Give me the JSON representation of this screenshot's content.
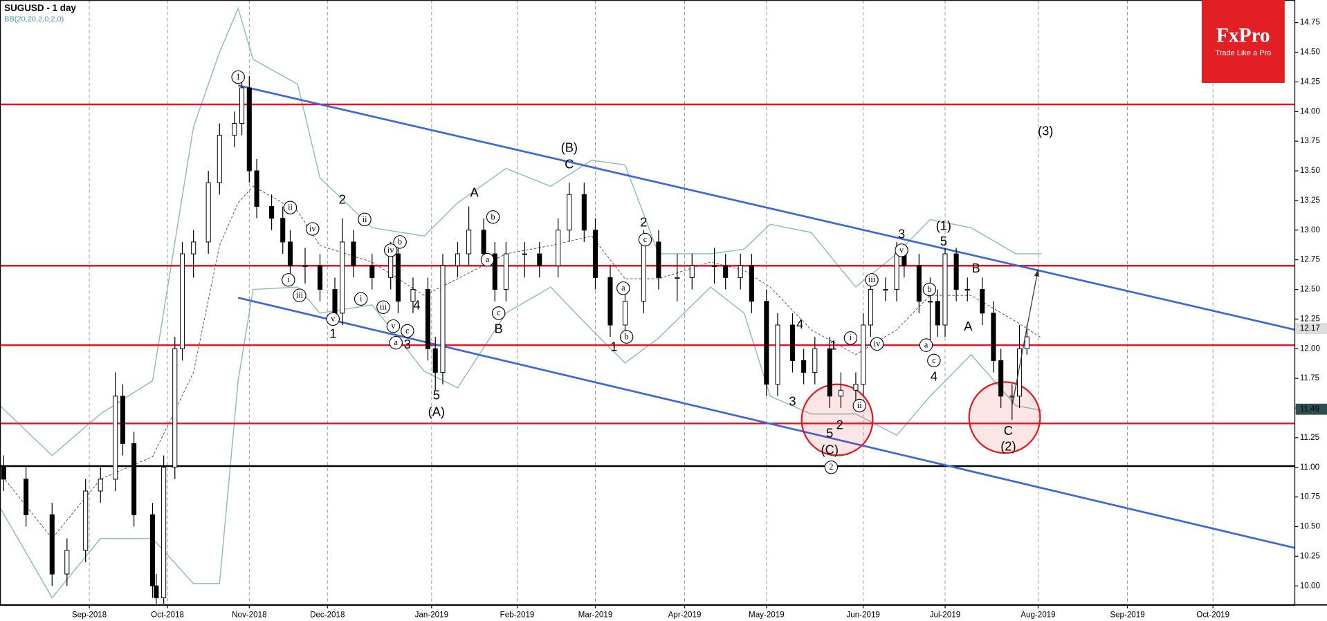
{
  "chart_data": {
    "type": "candlestick",
    "title": "SUGUSD - 1 day",
    "subtitle": "BB(20,20,2,0,2,0)",
    "logo": {
      "title": "FxPro",
      "tagline": "Trade Like a Pro"
    },
    "up_color": "#ffffff",
    "down_color": "#000000",
    "x": [
      1,
      7,
      14,
      18,
      23,
      27,
      31,
      33,
      36,
      41,
      42,
      44,
      47,
      49,
      52,
      56,
      59,
      63,
      65,
      67,
      69,
      73,
      76,
      78,
      82,
      86,
      90,
      92,
      95,
      100,
      105,
      107,
      111,
      115,
      117,
      119,
      123,
      126,
      130,
      133,
      136,
      141,
      145,
      150,
      153,
      157,
      160,
      164,
      168,
      173,
      177,
      182,
      186,
      192,
      195,
      199,
      202,
      206,
      209,
      213,
      216,
      219,
      223,
      226,
      230,
      232,
      234,
      238,
      241,
      243,
      247,
      250,
      252,
      254,
      257,
      260,
      264,
      267,
      269,
      272,
      274,
      276
    ],
    "open": [
      11.0,
      10.9,
      10.6,
      10.1,
      10.3,
      10.8,
      10.9,
      11.6,
      11.2,
      10.6,
      10.0,
      9.9,
      11.0,
      12.0,
      12.8,
      12.9,
      13.4,
      13.8,
      13.9,
      14.2,
      13.5,
      13.2,
      13.1,
      12.9,
      12.7,
      12.7,
      12.5,
      12.3,
      12.9,
      12.7,
      12.6,
      12.8,
      12.4,
      12.5,
      12.0,
      11.8,
      12.7,
      12.8,
      13.0,
      12.8,
      12.5,
      12.8,
      12.8,
      12.7,
      13.0,
      13.3,
      13.0,
      12.6,
      12.2,
      12.4,
      12.9,
      12.6,
      12.6,
      12.7,
      12.7,
      12.6,
      12.7,
      12.4,
      11.7,
      12.2,
      11.9,
      11.8,
      12.0,
      11.6,
      11.65,
      11.7,
      12.2,
      12.5,
      12.5,
      12.8,
      12.7,
      12.4,
      12.4,
      12.2,
      12.8,
      12.5,
      12.5,
      12.3,
      11.9,
      11.6,
      11.6,
      12.0
    ],
    "high": [
      11.1,
      11.0,
      10.7,
      10.4,
      10.9,
      11.0,
      11.8,
      11.7,
      11.3,
      10.7,
      10.1,
      11.1,
      12.1,
      12.9,
      13.0,
      13.5,
      13.9,
      14.0,
      14.3,
      14.3,
      13.6,
      13.3,
      13.2,
      13.0,
      12.85,
      12.8,
      12.6,
      13.1,
      13.0,
      12.8,
      12.9,
      12.9,
      12.6,
      12.6,
      12.1,
      12.8,
      12.9,
      13.2,
      13.1,
      12.9,
      12.9,
      12.9,
      12.9,
      13.1,
      13.4,
      13.4,
      13.1,
      12.7,
      12.5,
      13.0,
      13.0,
      12.8,
      12.8,
      12.85,
      12.8,
      12.8,
      12.8,
      12.5,
      12.3,
      12.3,
      12.0,
      12.1,
      12.1,
      11.8,
      11.8,
      12.3,
      12.6,
      12.6,
      12.9,
      12.85,
      12.8,
      12.6,
      12.5,
      12.85,
      12.85,
      12.6,
      12.6,
      12.4,
      12.0,
      11.7,
      12.2,
      12.2
    ],
    "low": [
      10.8,
      10.5,
      10.0,
      10.0,
      10.2,
      10.7,
      10.8,
      11.1,
      10.5,
      9.9,
      9.85,
      9.85,
      10.9,
      11.9,
      12.6,
      12.8,
      13.3,
      13.7,
      13.8,
      13.4,
      13.1,
      13.0,
      12.8,
      12.6,
      12.55,
      12.4,
      12.2,
      12.2,
      12.6,
      12.5,
      12.5,
      12.3,
      12.3,
      11.9,
      11.65,
      11.7,
      12.6,
      12.7,
      12.7,
      12.4,
      12.4,
      12.6,
      12.6,
      12.6,
      12.9,
      12.9,
      12.5,
      12.1,
      12.1,
      12.3,
      12.5,
      12.4,
      12.5,
      12.55,
      12.5,
      12.5,
      12.3,
      11.6,
      11.6,
      11.8,
      11.7,
      11.7,
      11.5,
      11.5,
      11.55,
      11.6,
      12.1,
      12.4,
      12.4,
      12.6,
      12.3,
      12.0,
      12.1,
      12.1,
      12.4,
      12.4,
      12.2,
      11.8,
      11.5,
      11.4,
      11.5,
      11.95
    ],
    "close": [
      10.9,
      10.6,
      10.1,
      10.3,
      10.8,
      10.9,
      11.6,
      11.2,
      10.6,
      10.0,
      9.9,
      11.0,
      12.0,
      12.8,
      12.9,
      13.4,
      13.8,
      13.9,
      14.2,
      13.5,
      13.2,
      13.1,
      12.9,
      12.7,
      12.7,
      12.5,
      12.3,
      12.9,
      12.7,
      12.6,
      12.8,
      12.4,
      12.5,
      12.0,
      11.8,
      12.7,
      12.8,
      13.0,
      12.8,
      12.5,
      12.8,
      12.8,
      12.7,
      13.0,
      13.3,
      13.0,
      12.6,
      12.2,
      12.4,
      12.9,
      12.6,
      12.6,
      12.7,
      12.7,
      12.6,
      12.7,
      12.4,
      11.7,
      12.2,
      11.9,
      11.8,
      12.0,
      11.6,
      11.65,
      11.7,
      12.2,
      12.5,
      12.5,
      12.8,
      12.7,
      12.4,
      12.4,
      12.2,
      12.8,
      12.5,
      12.5,
      12.3,
      11.9,
      11.6,
      11.6,
      12.0,
      12.1
    ],
    "bollinger": {
      "color": "#8fbcbc",
      "mid_color": "#555555",
      "x": [
        0,
        14,
        27,
        41,
        52,
        59,
        64,
        68,
        80,
        86,
        100,
        114,
        123,
        136,
        148,
        159,
        168,
        177,
        191,
        200,
        207,
        218,
        230,
        241,
        250,
        261,
        273,
        280
      ],
      "upper": [
        11.52,
        11.1,
        11.45,
        11.73,
        13.87,
        14.5,
        14.87,
        14.44,
        14.23,
        13.44,
        13.02,
        12.95,
        13.23,
        13.52,
        13.37,
        13.59,
        13.55,
        12.8,
        12.8,
        12.84,
        13.05,
        12.98,
        12.52,
        12.8,
        13.09,
        13.02,
        12.8,
        12.8
      ],
      "middle": [
        10.95,
        10.4,
        10.9,
        11.09,
        11.8,
        12.87,
        13.23,
        13.37,
        13.16,
        12.87,
        12.73,
        12.45,
        12.59,
        12.8,
        12.87,
        12.95,
        12.59,
        12.59,
        12.73,
        12.66,
        12.52,
        12.16,
        11.95,
        12.16,
        12.45,
        12.45,
        12.23,
        12.09
      ],
      "lower": [
        10.66,
        9.9,
        10.4,
        10.4,
        10.02,
        10.02,
        11.73,
        12.5,
        12.52,
        12.3,
        12.37,
        11.81,
        11.67,
        12.3,
        12.52,
        12.16,
        11.88,
        12.09,
        12.52,
        12.3,
        11.6,
        11.45,
        11.45,
        11.27,
        11.6,
        11.95,
        11.52,
        11.48
      ]
    },
    "hlines": [
      {
        "value": 14.06,
        "color": "#e8141b"
      },
      {
        "value": 12.7,
        "color": "#e8141b"
      },
      {
        "value": 12.03,
        "color": "#e8141b"
      },
      {
        "value": 11.37,
        "color": "#e8141b"
      },
      {
        "value": 11.01,
        "color": "#000000"
      }
    ],
    "trendlines": [
      {
        "color": "#3a64e0",
        "x": [
          64,
          348
        ],
        "y": [
          14.22,
          12.16
        ]
      },
      {
        "color": "#3a64e0",
        "x": [
          64,
          348
        ],
        "y": [
          12.43,
          10.32
        ]
      }
    ],
    "arrow": {
      "color": "#333333",
      "x": [
        272,
        279
      ],
      "y": [
        11.52,
        12.67
      ]
    },
    "highlight_circles": [
      {
        "x": 225,
        "y": 11.4
      },
      {
        "x": 270,
        "y": 11.42
      }
    ],
    "price_tags": [
      {
        "value": 12.17,
        "color": "#dddddd"
      },
      {
        "value": 11.49,
        "color": "#2f4f4f"
      }
    ],
    "annotations": [
      {
        "text": "1",
        "x": 64,
        "y": 14.29,
        "circled": true
      },
      {
        "text": "(B)",
        "x": 153,
        "y": 13.69
      },
      {
        "text": "C",
        "x": 153,
        "y": 13.55
      },
      {
        "text": "A",
        "x": 127.5,
        "y": 13.31
      },
      {
        "text": "2",
        "x": 92,
        "y": 13.25
      },
      {
        "text": "ii",
        "x": 78,
        "y": 13.19,
        "circled": true
      },
      {
        "text": "iv",
        "x": 84,
        "y": 13.01,
        "circled": true
      },
      {
        "text": "ii",
        "x": 98,
        "y": 13.09,
        "circled": true
      },
      {
        "text": "iv",
        "x": 105,
        "y": 12.83,
        "circled": true
      },
      {
        "text": "b",
        "x": 107.5,
        "y": 12.9,
        "circled": true
      },
      {
        "text": "b",
        "x": 132.5,
        "y": 13.11,
        "circled": true
      },
      {
        "text": "a",
        "x": 131,
        "y": 12.75,
        "circled": true
      },
      {
        "text": "c",
        "x": 134,
        "y": 12.3,
        "circled": true
      },
      {
        "text": "B",
        "x": 134,
        "y": 12.16
      },
      {
        "text": "i",
        "x": 77.5,
        "y": 12.58,
        "circled": true
      },
      {
        "text": "iii",
        "x": 80.5,
        "y": 12.45,
        "circled": true
      },
      {
        "text": "i",
        "x": 97,
        "y": 12.42,
        "circled": true
      },
      {
        "text": "iii",
        "x": 103,
        "y": 12.35,
        "circled": true
      },
      {
        "text": "4",
        "x": 112,
        "y": 12.36
      },
      {
        "text": "v",
        "x": 105.7,
        "y": 12.19,
        "circled": true
      },
      {
        "text": "c",
        "x": 109.5,
        "y": 12.15,
        "circled": true
      },
      {
        "text": "a",
        "x": 106.4,
        "y": 12.05,
        "circled": true
      },
      {
        "text": "3",
        "x": 109.5,
        "y": 12.03
      },
      {
        "text": "v",
        "x": 89.5,
        "y": 12.25,
        "circled": true
      },
      {
        "text": "1",
        "x": 89.5,
        "y": 12.12
      },
      {
        "text": "5",
        "x": 117.3,
        "y": 11.6
      },
      {
        "text": "(A)",
        "x": 117.3,
        "y": 11.46
      },
      {
        "text": "2",
        "x": 173,
        "y": 13.06
      },
      {
        "text": "c",
        "x": 173.4,
        "y": 12.92,
        "circled": true
      },
      {
        "text": "a",
        "x": 167.5,
        "y": 12.51,
        "circled": true
      },
      {
        "text": "1",
        "x": 165,
        "y": 12.01
      },
      {
        "text": "b",
        "x": 168.4,
        "y": 12.1,
        "circled": true
      },
      {
        "text": "4",
        "x": 215,
        "y": 12.2
      },
      {
        "text": "3",
        "x": 213,
        "y": 11.55
      },
      {
        "text": "1",
        "x": 224,
        "y": 12.02
      },
      {
        "text": "5",
        "x": 223,
        "y": 11.28
      },
      {
        "text": "2",
        "x": 225.7,
        "y": 11.35
      },
      {
        "text": "(C)",
        "x": 223,
        "y": 11.14
      },
      {
        "text": "2",
        "x": 223.4,
        "y": 11.0,
        "circled": true
      },
      {
        "text": "ii",
        "x": 231,
        "y": 11.52,
        "circled": true
      },
      {
        "text": "i",
        "x": 228.6,
        "y": 12.09,
        "circled": true
      },
      {
        "text": "iv",
        "x": 235.7,
        "y": 12.04,
        "circled": true
      },
      {
        "text": "iii",
        "x": 234.3,
        "y": 12.58,
        "circled": true
      },
      {
        "text": "3",
        "x": 242.3,
        "y": 12.96
      },
      {
        "text": "v",
        "x": 242.3,
        "y": 12.83,
        "circled": true
      },
      {
        "text": "(1)",
        "x": 253.6,
        "y": 13.03
      },
      {
        "text": "5",
        "x": 253.6,
        "y": 12.9
      },
      {
        "text": "b",
        "x": 249.8,
        "y": 12.5,
        "circled": true
      },
      {
        "text": "a",
        "x": 248.9,
        "y": 12.03,
        "circled": true
      },
      {
        "text": "c",
        "x": 251,
        "y": 11.9,
        "circled": true
      },
      {
        "text": "4",
        "x": 251,
        "y": 11.76
      },
      {
        "text": "B",
        "x": 262.3,
        "y": 12.67
      },
      {
        "text": "A",
        "x": 260.2,
        "y": 12.18
      },
      {
        "text": "C",
        "x": 271,
        "y": 11.3
      },
      {
        "text": "(2)",
        "x": 271,
        "y": 11.17
      },
      {
        "text": "(3)",
        "x": 281,
        "y": 13.83
      }
    ],
    "xlim": [
      0,
      348
    ],
    "xticks": [
      {
        "value": 24,
        "label": "Sep-2018"
      },
      {
        "value": 45,
        "label": "Oct-2018"
      },
      {
        "value": 67,
        "label": "Nov-2018"
      },
      {
        "value": 88,
        "label": "Dec-2018"
      },
      {
        "value": 116,
        "label": "Jan-2019"
      },
      {
        "value": 139,
        "label": "Feb-2019"
      },
      {
        "value": 160,
        "label": "Mar-2019"
      },
      {
        "value": 184,
        "label": "Apr-2019"
      },
      {
        "value": 206,
        "label": "May-2019"
      },
      {
        "value": 232,
        "label": "Jun-2019"
      },
      {
        "value": 254,
        "label": "Jul-2019"
      },
      {
        "value": 279,
        "label": "Aug-2019"
      },
      {
        "value": 303,
        "label": "Sep-2019"
      },
      {
        "value": 326,
        "label": "Oct-2019"
      }
    ],
    "xgrid": true,
    "ylim": [
      9.84,
      14.94
    ],
    "yticks": [
      {
        "value": 10,
        "label": "10.00"
      },
      10.25,
      {
        "value": 10.5,
        "label": "10.50"
      },
      10.75,
      {
        "value": 11,
        "label": "11.00"
      },
      11.25,
      {
        "value": 11.5,
        "label": "11.50"
      },
      11.75,
      {
        "value": 12,
        "label": "12.00"
      },
      12.25,
      {
        "value": 12.5,
        "label": "12.50"
      },
      12.75,
      {
        "value": 13,
        "label": "13.00"
      },
      13.25,
      {
        "value": 13.5,
        "label": "13.50"
      },
      13.75,
      {
        "value": 14,
        "label": "14.00"
      },
      14.25,
      {
        "value": 14.5,
        "label": "14.50"
      },
      14.75
    ]
  }
}
